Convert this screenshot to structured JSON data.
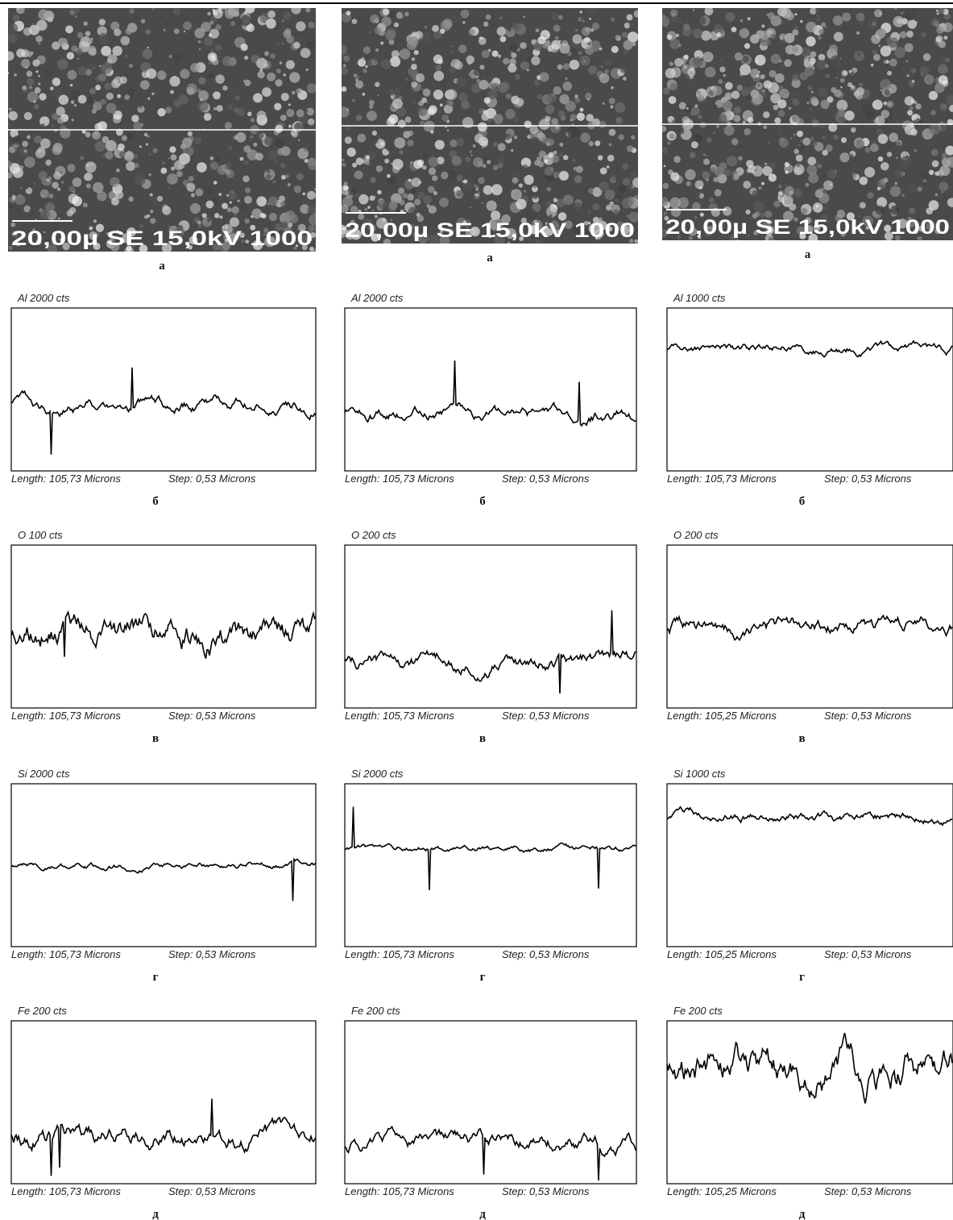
{
  "columns": [
    {
      "image": {
        "overlay": "20,00µ SE 15,0kV 1000",
        "caption": "а"
      },
      "scans": [
        {
          "element": "Al 2000 cts",
          "length": "Length: 105,73 Microns",
          "step": "Step: 0,53 Microns",
          "caption": "б"
        },
        {
          "element": "O 100 cts",
          "length": "Length: 105,73 Microns",
          "step": "Step: 0,53 Microns",
          "caption": "в"
        },
        {
          "element": "Si 2000 cts",
          "length": "Length: 105,73 Microns",
          "step": "Step: 0,53 Microns",
          "caption": "г"
        },
        {
          "element": "Fe 200 cts",
          "length": "Length: 105,73 Microns",
          "step": "Step: 0,53 Microns",
          "caption": "д"
        }
      ]
    },
    {
      "image": {
        "overlay": "20,00µ SE 15,0kV 1000",
        "caption": "а"
      },
      "scans": [
        {
          "element": "Al 2000 cts",
          "length": "Length: 105,73 Microns",
          "step": "Step: 0,53 Microns",
          "caption": "б"
        },
        {
          "element": "O 200 cts",
          "length": "Length: 105,73 Microns",
          "step": "Step: 0,53 Microns",
          "caption": "в"
        },
        {
          "element": "Si 2000 cts",
          "length": "Length: 105,73 Microns",
          "step": "Step: 0,53 Microns",
          "caption": "г"
        },
        {
          "element": "Fe 200 cts",
          "length": "Length: 105,73 Microns",
          "step": "Step: 0,53 Microns",
          "caption": "д"
        }
      ]
    },
    {
      "image": {
        "overlay": "20,00µ SE 15,0kV 1000",
        "caption": "а"
      },
      "scans": [
        {
          "element": "Al 1000 cts",
          "length": "Length: 105,73 Microns",
          "step": "Step: 0,53 Microns",
          "caption": "б"
        },
        {
          "element": "O 200 cts",
          "length": "Length: 105,25 Microns",
          "step": "Step: 0,53 Microns",
          "caption": "в"
        },
        {
          "element": "Si 1000 cts",
          "length": "Length: 105,25 Microns",
          "step": "Step: 0,53 Microns",
          "caption": "г"
        },
        {
          "element": "Fe 200 cts",
          "length": "Length: 105,25 Microns",
          "step": "Step: 0,53 Microns",
          "caption": "д"
        }
      ]
    }
  ]
}
